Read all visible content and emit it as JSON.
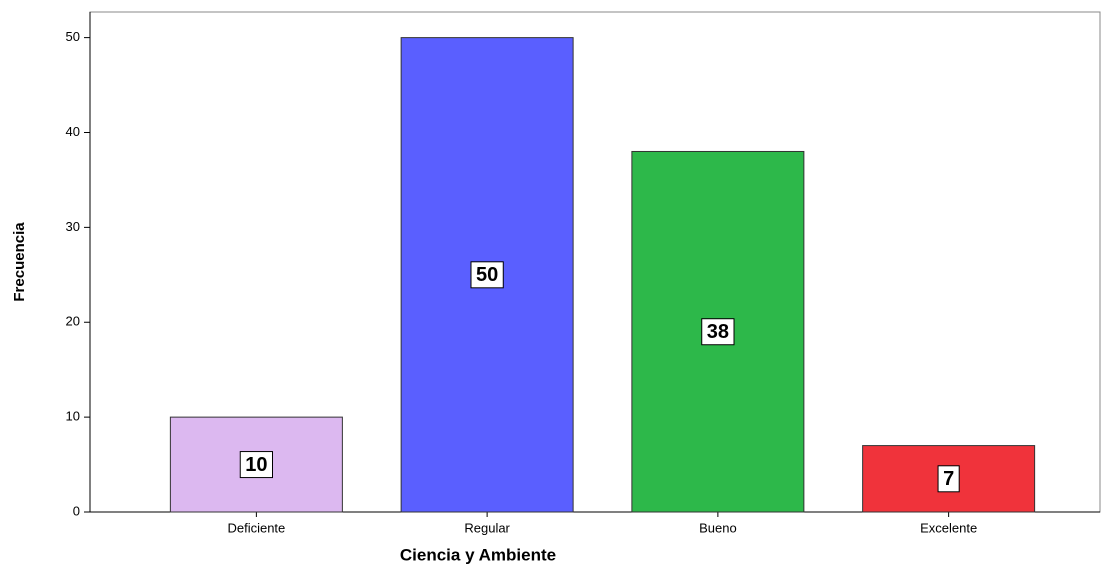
{
  "chart_data": {
    "type": "bar",
    "x_label": "Ciencia y Ambiente",
    "y_label": "Frecuencia",
    "categories": [
      "Deficiente",
      "Regular",
      "Bueno",
      "Excelente"
    ],
    "values": [
      10,
      50,
      38,
      7
    ],
    "colors": [
      "#dcb8f0",
      "#5a5fff",
      "#2db84a",
      "#f0333b"
    ],
    "ylim": [
      0,
      52.7
    ],
    "yticks": [
      0,
      10,
      20,
      30,
      40,
      50
    ],
    "grid": false
  }
}
